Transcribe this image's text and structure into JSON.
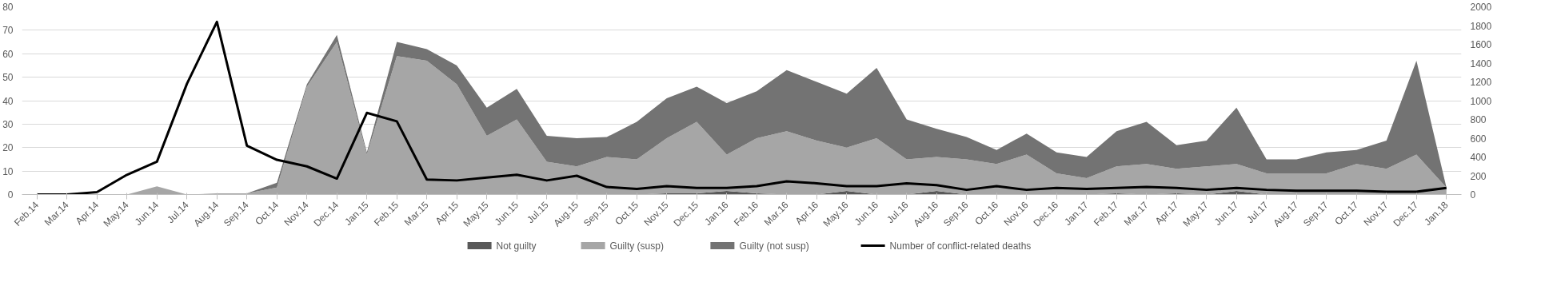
{
  "chart_data": {
    "type": "area",
    "stacked": true,
    "categories": [
      "Feb.14",
      "Mar.14",
      "Apr.14",
      "May.14",
      "Jun.14",
      "Jul.14",
      "Aug.14",
      "Sep.14",
      "Oct.14",
      "Nov.14",
      "Dec.14",
      "Jan.15",
      "Feb.15",
      "Mar.15",
      "Apr.15",
      "May.15",
      "Jun.15",
      "Jul.15",
      "Aug.15",
      "Sep.15",
      "Oct.15",
      "Nov.15",
      "Dec.15",
      "Jan.16",
      "Feb.16",
      "Mar.16",
      "Apr.16",
      "May.16",
      "Jun.16",
      "Jul.16",
      "Aug.16",
      "Sep.16",
      "Oct.16",
      "Nov.16",
      "Dec.16",
      "Jan.17",
      "Feb.17",
      "Mar.17",
      "Apr.17",
      "May.17",
      "Jun.17",
      "Jul.17",
      "Aug.17",
      "Sep.17",
      "Oct.17",
      "Nov.17",
      "Dec.17",
      "Jan.18"
    ],
    "series": [
      {
        "name": "Not guilty",
        "color": "#595959",
        "values": [
          0,
          0,
          0,
          0,
          0,
          0,
          0,
          0,
          0,
          0,
          0,
          0,
          0,
          0,
          0,
          0,
          0,
          0,
          0,
          0,
          0,
          0.5,
          0.5,
          1.5,
          0.5,
          0,
          0,
          1.5,
          0,
          0,
          1.5,
          0,
          0,
          0,
          0,
          0,
          0.5,
          0,
          0.5,
          0,
          1.5,
          0,
          0,
          0,
          0,
          0,
          0,
          0
        ]
      },
      {
        "name": "Guilty (susp)",
        "color": "#a6a6a6",
        "values": [
          0,
          0,
          0,
          0,
          3.5,
          0,
          0.5,
          0.5,
          3,
          46,
          65,
          17,
          59,
          57,
          47,
          25,
          32,
          14,
          12,
          16,
          15,
          23.5,
          30.5,
          15.5,
          23.5,
          27,
          23,
          18.5,
          24,
          15,
          14.5,
          15,
          13,
          17,
          9,
          7,
          11.5,
          13,
          10.5,
          12,
          11.5,
          9,
          9,
          9,
          13,
          11,
          17,
          3
        ]
      },
      {
        "name": "Guilty (not susp)",
        "color": "#737373",
        "values": [
          0,
          0,
          0,
          0,
          0,
          0,
          0,
          0,
          2,
          1,
          3,
          1,
          6,
          5,
          8,
          12,
          13,
          11,
          12,
          8.5,
          16,
          17,
          15,
          22,
          20,
          26,
          25,
          23,
          30,
          17,
          12,
          9.5,
          6,
          9,
          9,
          9,
          15,
          18,
          10,
          11,
          24,
          6,
          6,
          9,
          6,
          12,
          40,
          0
        ]
      },
      {
        "name": "Number of conflict-related deaths",
        "type": "line",
        "axis": "y2",
        "color": "#000000",
        "values": [
          0,
          0,
          25,
          210,
          350,
          1180,
          1840,
          520,
          370,
          300,
          170,
          870,
          780,
          160,
          150,
          180,
          210,
          150,
          200,
          80,
          60,
          90,
          70,
          70,
          90,
          140,
          120,
          90,
          90,
          120,
          100,
          50,
          90,
          50,
          70,
          60,
          70,
          80,
          70,
          50,
          70,
          50,
          40,
          40,
          40,
          30,
          30,
          70
        ]
      }
    ],
    "ylim": [
      0,
      80
    ],
    "yticks": [
      0,
      10,
      20,
      30,
      40,
      50,
      60,
      70,
      80
    ],
    "y2lim": [
      0,
      2000
    ],
    "y2ticks": [
      0,
      200,
      400,
      600,
      800,
      1000,
      1200,
      1400,
      1600,
      1800,
      2000
    ],
    "grid": "y",
    "legend": "bottom"
  }
}
